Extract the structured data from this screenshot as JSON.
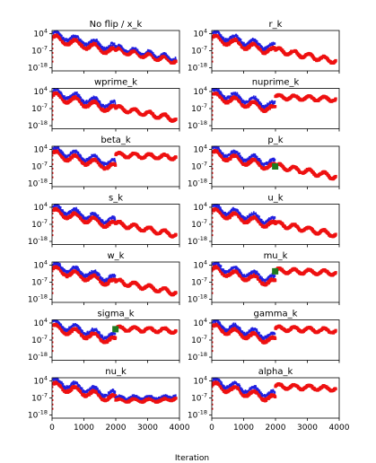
{
  "figure": {
    "xlabel": "Iteration"
  },
  "colors": {
    "blue": "#2020e0",
    "red": "#ee1111",
    "green": "#1f7a1f",
    "axis": "#000000"
  },
  "chart_data": {
    "type": "scatter",
    "layout": "7x2 grid of small multiples",
    "x_range": [
      0,
      4000
    ],
    "y_scale": "log",
    "y_range_log10": [
      -20,
      6
    ],
    "x_ticks": [
      0,
      1000,
      2000,
      3000,
      4000
    ],
    "x_tick_labels": [
      "0",
      "1000",
      "2000",
      "3000",
      "4000"
    ],
    "y_ticks_log10": [
      4,
      -7,
      -18
    ],
    "y_tick_labels": [
      "10^4",
      "10^-7",
      "10^-18"
    ],
    "series_names": [
      "blue",
      "red"
    ],
    "panels": [
      {
        "title": "No flip / x_k",
        "after_2000": "decay",
        "blue_after": true,
        "marker": false
      },
      {
        "title": "r_k",
        "after_2000": "decay",
        "blue_after": false,
        "marker": false
      },
      {
        "title": "wprime_k",
        "after_2000": "decay",
        "blue_after": false,
        "marker": false
      },
      {
        "title": "nuprime_k",
        "after_2000": "high",
        "blue_after": false,
        "marker": false
      },
      {
        "title": "beta_k",
        "after_2000": "high",
        "blue_after": false,
        "marker": false
      },
      {
        "title": "p_k",
        "after_2000": "decay",
        "blue_after": false,
        "marker": true
      },
      {
        "title": "s_k",
        "after_2000": "decay",
        "blue_after": false,
        "marker": false
      },
      {
        "title": "u_k",
        "after_2000": "decay",
        "blue_after": false,
        "marker": false
      },
      {
        "title": "w_k",
        "after_2000": "decay",
        "blue_after": false,
        "marker": false
      },
      {
        "title": "mu_k",
        "after_2000": "high",
        "blue_after": false,
        "marker": true
      },
      {
        "title": "sigma_k",
        "after_2000": "high",
        "blue_after": false,
        "marker": true
      },
      {
        "title": "gamma_k",
        "after_2000": "high",
        "blue_after": false,
        "marker": false
      },
      {
        "title": "nu_k",
        "after_2000": "flat",
        "blue_after": true,
        "marker": false
      },
      {
        "title": "alpha_k",
        "after_2000": "high",
        "blue_after": false,
        "marker": false
      }
    ]
  }
}
